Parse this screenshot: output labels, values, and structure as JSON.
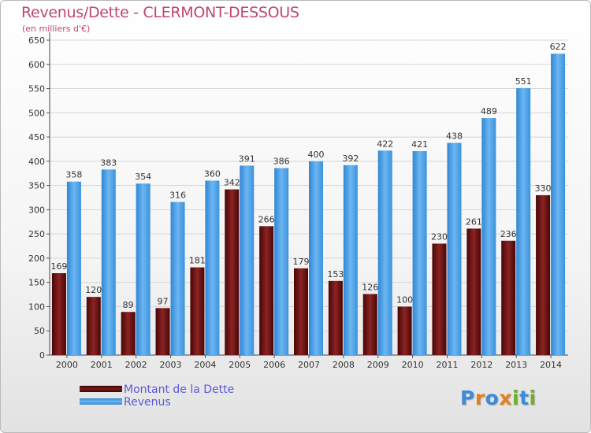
{
  "title": "Revenus/Dette - CLERMONT-DESSOUS",
  "subtitle": "(en milliers d'€)",
  "logo": {
    "text": "Proxiti",
    "letters": [
      "P",
      "r",
      "o",
      "x",
      "i",
      "t",
      "i"
    ],
    "letter_colors": [
      "#3d8ad8",
      "#e0811f",
      "#3d8ad8",
      "#e0811f",
      "#6fae2c",
      "#3d8ad8",
      "#6fae2c"
    ]
  },
  "chart_data": {
    "type": "bar",
    "title": "Revenus/Dette - CLERMONT-DESSOUS",
    "ylabel": "(en milliers d'€)",
    "xlabel": "",
    "categories": [
      "2000",
      "2001",
      "2002",
      "2003",
      "2004",
      "2005",
      "2006",
      "2007",
      "2008",
      "2009",
      "2010",
      "2011",
      "2012",
      "2013",
      "2014"
    ],
    "series": [
      {
        "name": "Montant de la Dette",
        "color": "#6b1010",
        "values": [
          169,
          120,
          89,
          97,
          181,
          342,
          266,
          179,
          153,
          126,
          100,
          230,
          261,
          236,
          330
        ]
      },
      {
        "name": "Revenus",
        "color": "#4a9ee3",
        "values": [
          358,
          383,
          354,
          316,
          360,
          391,
          386,
          400,
          392,
          422,
          421,
          438,
          489,
          551,
          622
        ]
      }
    ],
    "ylim": [
      0,
      650
    ],
    "yticks": [
      0,
      50,
      100,
      150,
      200,
      250,
      300,
      350,
      400,
      450,
      500,
      550,
      600,
      650
    ],
    "grid": true,
    "legend_position": "bottom-left"
  }
}
